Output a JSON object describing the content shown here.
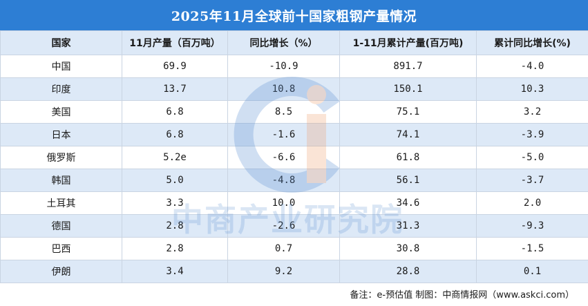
{
  "title": "2025年11月全球前十国家粗钢产量情况",
  "table": {
    "headers": [
      "国家",
      "11月产量（百万吨）",
      "同比增长（%）",
      "1-11月累计产量(百万吨)",
      "累计同比增长(%)"
    ],
    "rows": [
      [
        "中国",
        "69.9",
        "-10.9",
        "891.7",
        "-4.0"
      ],
      [
        "印度",
        "13.7",
        "10.8",
        "150.1",
        "10.3"
      ],
      [
        "美国",
        "6.8",
        "8.5",
        "75.1",
        "3.2"
      ],
      [
        "日本",
        "6.8",
        "-1.6",
        "74.1",
        "-3.9"
      ],
      [
        "俄罗斯",
        "5.2e",
        "-6.6",
        "61.8",
        "-5.0"
      ],
      [
        "韩国",
        "5.0",
        "-4.8",
        "56.1",
        "-3.7"
      ],
      [
        "土耳其",
        "3.3",
        "10.0",
        "34.6",
        "2.0"
      ],
      [
        "德国",
        "2.8",
        "-2.6",
        "31.3",
        "-9.3"
      ],
      [
        "巴西",
        "2.8",
        "0.7",
        "30.8",
        "-1.5"
      ],
      [
        "伊朗",
        "3.4",
        "9.2",
        "28.8",
        "0.1"
      ]
    ]
  },
  "watermark": {
    "text": "中商产业研究院",
    "logo_icon": "ci-logo-icon"
  },
  "footer": "备注：e-预估值 制图：中商情报网（www.askci.com）",
  "colors": {
    "title_bg": "#2d7ed4",
    "stripe": "#dde9f7",
    "border": "#c9d4e2",
    "watermark_blue": "#5a8fd2",
    "watermark_orange": "#f0a070"
  }
}
